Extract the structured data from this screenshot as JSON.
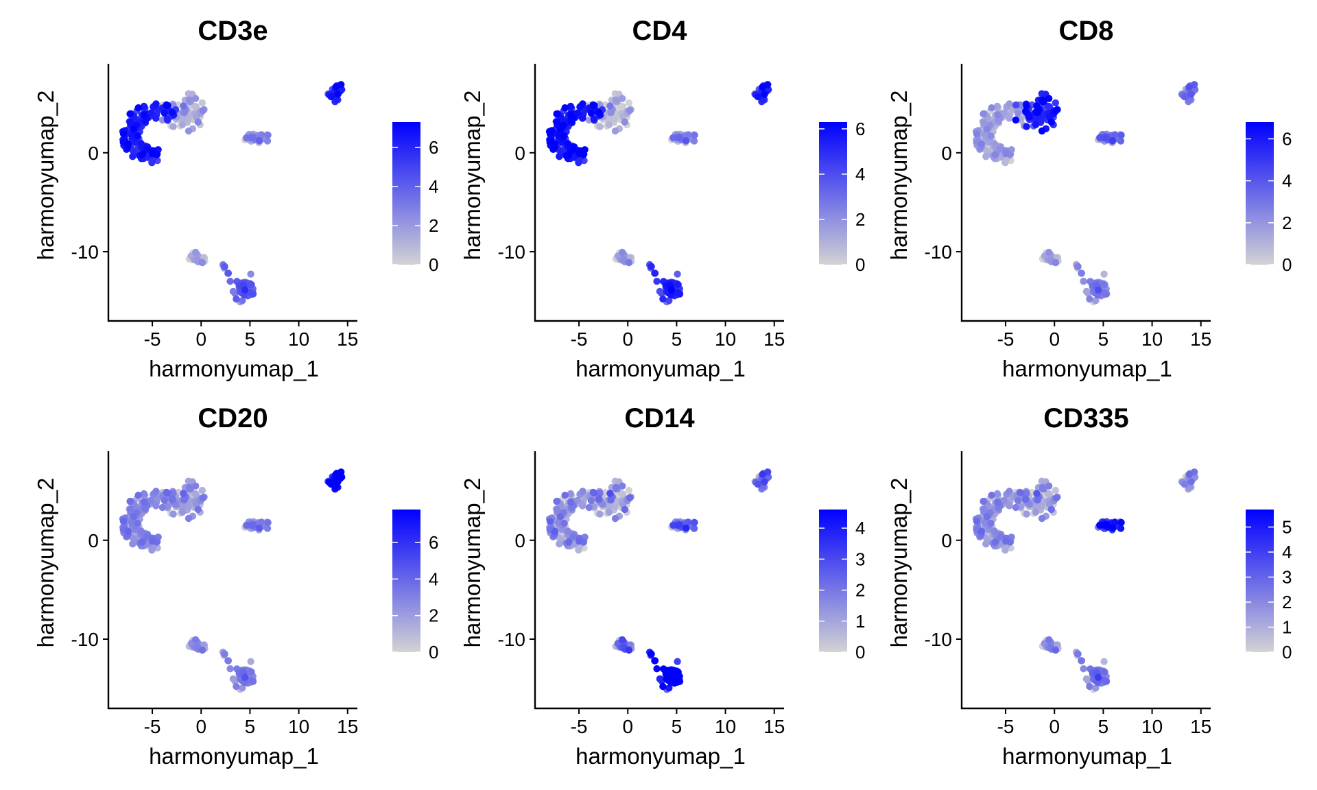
{
  "chart_data": [
    {
      "type": "scatter",
      "title": "CD3e",
      "xlabel": "harmonyumap_1",
      "ylabel": "harmonyumap_2",
      "xlim": [
        -9.5,
        16
      ],
      "ylim": [
        -17,
        9
      ],
      "x_ticks": [
        -5,
        0,
        5,
        10,
        15
      ],
      "x_tick_labels": [
        "-5",
        "0",
        "5",
        "10",
        "15"
      ],
      "y_ticks": [
        0,
        -10
      ],
      "y_tick_labels": [
        "0",
        "-10"
      ],
      "legend": {
        "position": "right",
        "min": 0,
        "max": 7.3,
        "ticks": [
          0,
          2,
          4,
          6
        ],
        "tick_labels": [
          "0",
          "2",
          "4",
          "6"
        ]
      },
      "cluster_levels": [
        6.0,
        1.2,
        5.5,
        0.4,
        3.5,
        2.0
      ]
    },
    {
      "type": "scatter",
      "title": "CD4",
      "xlabel": "harmonyumap_1",
      "ylabel": "harmonyumap_2",
      "xlim": [
        -9.5,
        16
      ],
      "ylim": [
        -17,
        9
      ],
      "x_ticks": [
        -5,
        0,
        5,
        10,
        15
      ],
      "x_tick_labels": [
        "-5",
        "0",
        "5",
        "10",
        "15"
      ],
      "y_ticks": [
        0,
        -10
      ],
      "y_tick_labels": [
        "0",
        "-10"
      ],
      "legend": {
        "position": "right",
        "min": 0,
        "max": 6.3,
        "ticks": [
          0,
          2,
          4,
          6
        ],
        "tick_labels": [
          "0",
          "2",
          "4",
          "6"
        ]
      },
      "cluster_levels": [
        5.5,
        0.6,
        4.5,
        0.5,
        4.5,
        1.8
      ]
    },
    {
      "type": "scatter",
      "title": "CD8",
      "xlabel": "harmonyumap_1",
      "ylabel": "harmonyumap_2",
      "xlim": [
        -9.5,
        16
      ],
      "ylim": [
        -17,
        9
      ],
      "x_ticks": [
        -5,
        0,
        5,
        10,
        15
      ],
      "x_tick_labels": [
        "-5",
        "0",
        "5",
        "10",
        "15"
      ],
      "y_ticks": [
        0,
        -10
      ],
      "y_tick_labels": [
        "0",
        "-10"
      ],
      "legend": {
        "position": "right",
        "min": 0,
        "max": 6.8,
        "ticks": [
          0,
          2,
          4,
          6
        ],
        "tick_labels": [
          "0",
          "2",
          "4",
          "6"
        ]
      },
      "cluster_levels": [
        1.2,
        5.8,
        2.3,
        0.4,
        2.0,
        2.8
      ]
    },
    {
      "type": "scatter",
      "title": "CD20",
      "xlabel": "harmonyumap_1",
      "ylabel": "harmonyumap_2",
      "xlim": [
        -9.5,
        16
      ],
      "ylim": [
        -17,
        9
      ],
      "x_ticks": [
        -5,
        0,
        5,
        10,
        15
      ],
      "x_tick_labels": [
        "-5",
        "0",
        "5",
        "10",
        "15"
      ],
      "y_ticks": [
        0,
        -10
      ],
      "y_tick_labels": [
        "0",
        "-10"
      ],
      "legend": {
        "position": "right",
        "min": 0,
        "max": 7.8,
        "ticks": [
          0,
          2,
          4,
          6
        ],
        "tick_labels": [
          "0",
          "2",
          "4",
          "6"
        ]
      },
      "cluster_levels": [
        2.5,
        2.0,
        7.0,
        1.5,
        2.5,
        2.5
      ]
    },
    {
      "type": "scatter",
      "title": "CD14",
      "xlabel": "harmonyumap_1",
      "ylabel": "harmonyumap_2",
      "xlim": [
        -9.5,
        16
      ],
      "ylim": [
        -17,
        9
      ],
      "x_ticks": [
        -5,
        0,
        5,
        10,
        15
      ],
      "x_tick_labels": [
        "-5",
        "0",
        "5",
        "10",
        "15"
      ],
      "y_ticks": [
        0,
        -10
      ],
      "y_tick_labels": [
        "0",
        "-10"
      ],
      "legend": {
        "position": "right",
        "min": 0,
        "max": 4.6,
        "ticks": [
          0,
          1,
          2,
          3,
          4
        ],
        "tick_labels": [
          "0",
          "1",
          "2",
          "3",
          "4"
        ]
      },
      "cluster_levels": [
        1.0,
        0.8,
        1.5,
        1.3,
        4.3,
        1.8
      ]
    },
    {
      "type": "scatter",
      "title": "CD335",
      "xlabel": "harmonyumap_1",
      "ylabel": "harmonyumap_2",
      "xlim": [
        -9.5,
        16
      ],
      "ylim": [
        -17,
        9
      ],
      "x_ticks": [
        -5,
        0,
        5,
        10,
        15
      ],
      "x_tick_labels": [
        "-5",
        "0",
        "5",
        "10",
        "15"
      ],
      "y_ticks": [
        0,
        -10
      ],
      "y_tick_labels": [
        "0",
        "-10"
      ],
      "legend": {
        "position": "right",
        "min": 0,
        "max": 5.7,
        "ticks": [
          0,
          1,
          2,
          3,
          4,
          5
        ],
        "tick_labels": [
          "0",
          "1",
          "2",
          "3",
          "4",
          "5"
        ]
      },
      "cluster_levels": [
        1.4,
        1.2,
        1.0,
        0.8,
        1.8,
        4.5
      ]
    }
  ],
  "colors": {
    "low": "#d3d3d3",
    "high": "#0000ff",
    "axis": "#000000"
  }
}
